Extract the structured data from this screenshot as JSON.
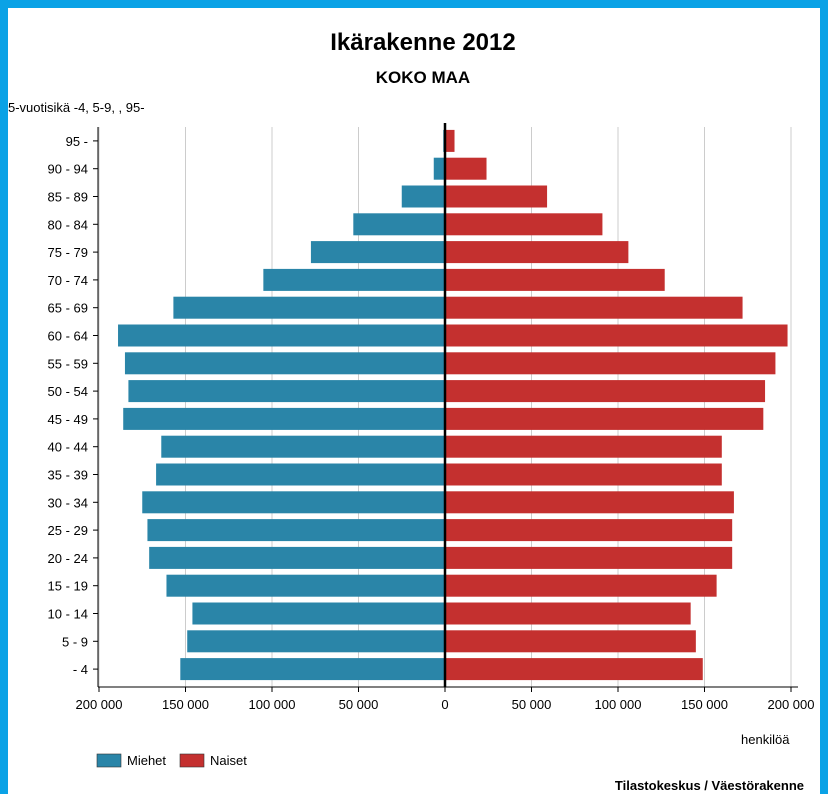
{
  "colors": {
    "frame_background": "#0aa2e6",
    "men": "#2a85a8",
    "women": "#c4302f",
    "grid": "#cccccc"
  },
  "chart_data": {
    "type": "bar",
    "orientation": "horizontal",
    "layout": "population-pyramid",
    "title": "Ikärakenne 2012",
    "subtitle": "KOKO MAA",
    "y_axis_title": "5-vuotisikä -4, 5-9, , 95-",
    "x_axis_unit": "henkilöä",
    "source": "Tilastokeskus / Väestörakenne",
    "categories": [
      "95 -",
      "90 - 94",
      "85 - 89",
      "80 - 84",
      "75 - 79",
      "70 - 74",
      "65 - 69",
      "60 - 64",
      "55 - 59",
      "50 - 54",
      "45 - 49",
      "40 - 44",
      "35 - 39",
      "30 - 34",
      "25 - 29",
      "20 - 24",
      "15 - 19",
      "10 - 14",
      "5 - 9",
      "- 4"
    ],
    "xlim": [
      -200000,
      200000
    ],
    "x_ticks": [
      -200000,
      -150000,
      -100000,
      -50000,
      0,
      50000,
      100000,
      150000,
      200000
    ],
    "x_tick_labels": [
      "200 000",
      "150 000",
      "100 000",
      "50 000",
      "0",
      "50 000",
      "100 000",
      "150 000",
      "200 000"
    ],
    "grid": true,
    "legend_position": "bottom-left",
    "series": [
      {
        "name": "Miehet",
        "side": "left",
        "color": "#2a85a8",
        "values": [
          1000,
          6500,
          25000,
          53000,
          77500,
          105000,
          157000,
          189000,
          185000,
          183000,
          186000,
          164000,
          167000,
          175000,
          172000,
          171000,
          161000,
          146000,
          149000,
          153000
        ]
      },
      {
        "name": "Naiset",
        "side": "right",
        "color": "#c4302f",
        "values": [
          5500,
          24000,
          59000,
          91000,
          106000,
          127000,
          172000,
          198000,
          191000,
          185000,
          184000,
          160000,
          160000,
          167000,
          166000,
          166000,
          157000,
          142000,
          145000,
          149000
        ]
      }
    ]
  }
}
